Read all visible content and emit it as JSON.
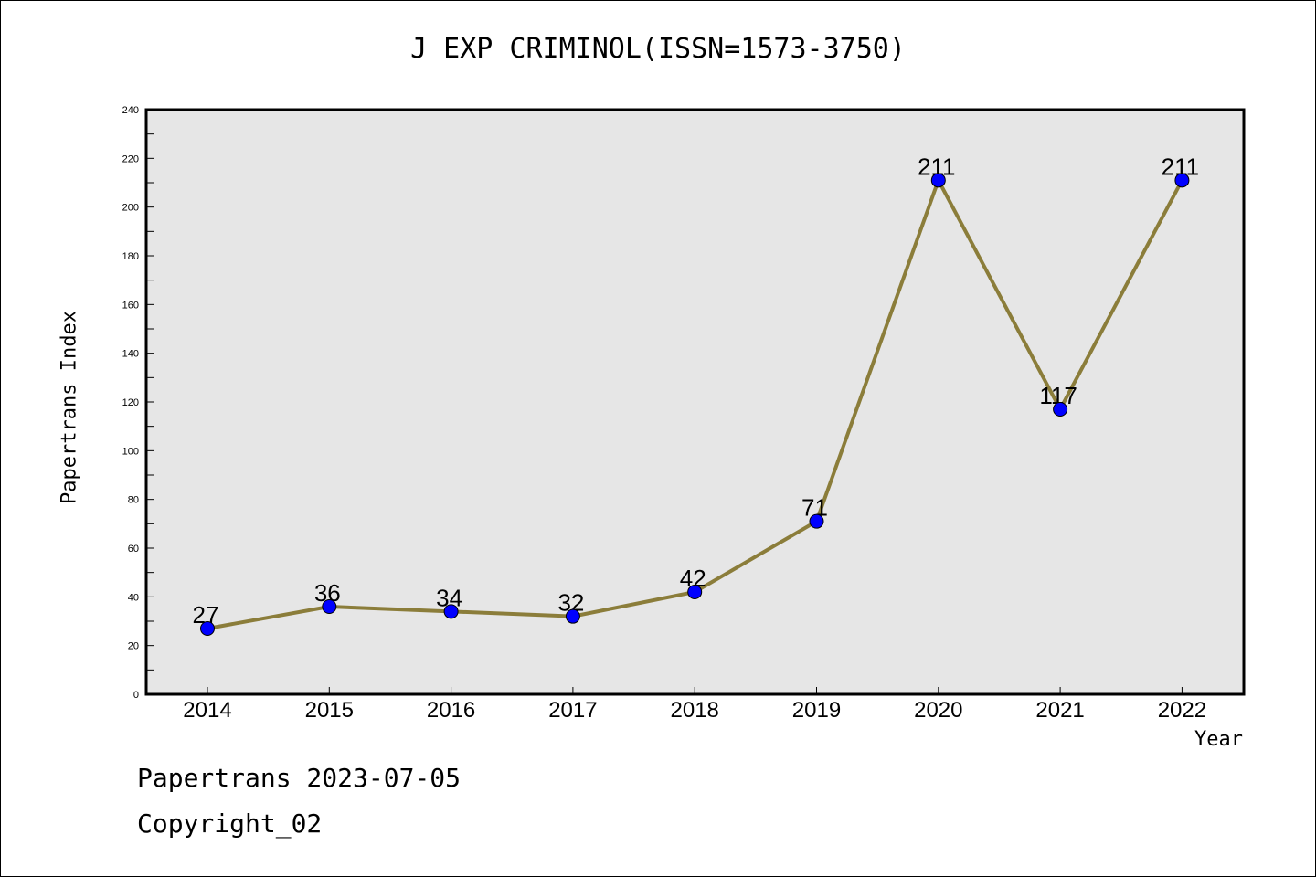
{
  "chart_data": {
    "type": "line",
    "title": "J EXP CRIMINOL(ISSN=1573-3750)",
    "xlabel": "Year",
    "ylabel": "Papertrans Index",
    "categories": [
      "2014",
      "2015",
      "2016",
      "2017",
      "2018",
      "2019",
      "2020",
      "2021",
      "2022"
    ],
    "values": [
      27,
      36,
      34,
      32,
      42,
      71,
      211,
      117,
      211
    ],
    "ylim": [
      0,
      240
    ],
    "yticks": [
      "0",
      "20",
      "40",
      "60",
      "80",
      "100",
      "120",
      "140",
      "160",
      "180",
      "200",
      "220",
      "240"
    ],
    "grid": false,
    "colors": {
      "line": "#8b7d3a",
      "marker": "#0000ff",
      "plot_bg": "#e6e6e6"
    }
  },
  "footer": {
    "line1": "Papertrans 2023-07-05",
    "line2": "Copyright_02"
  }
}
